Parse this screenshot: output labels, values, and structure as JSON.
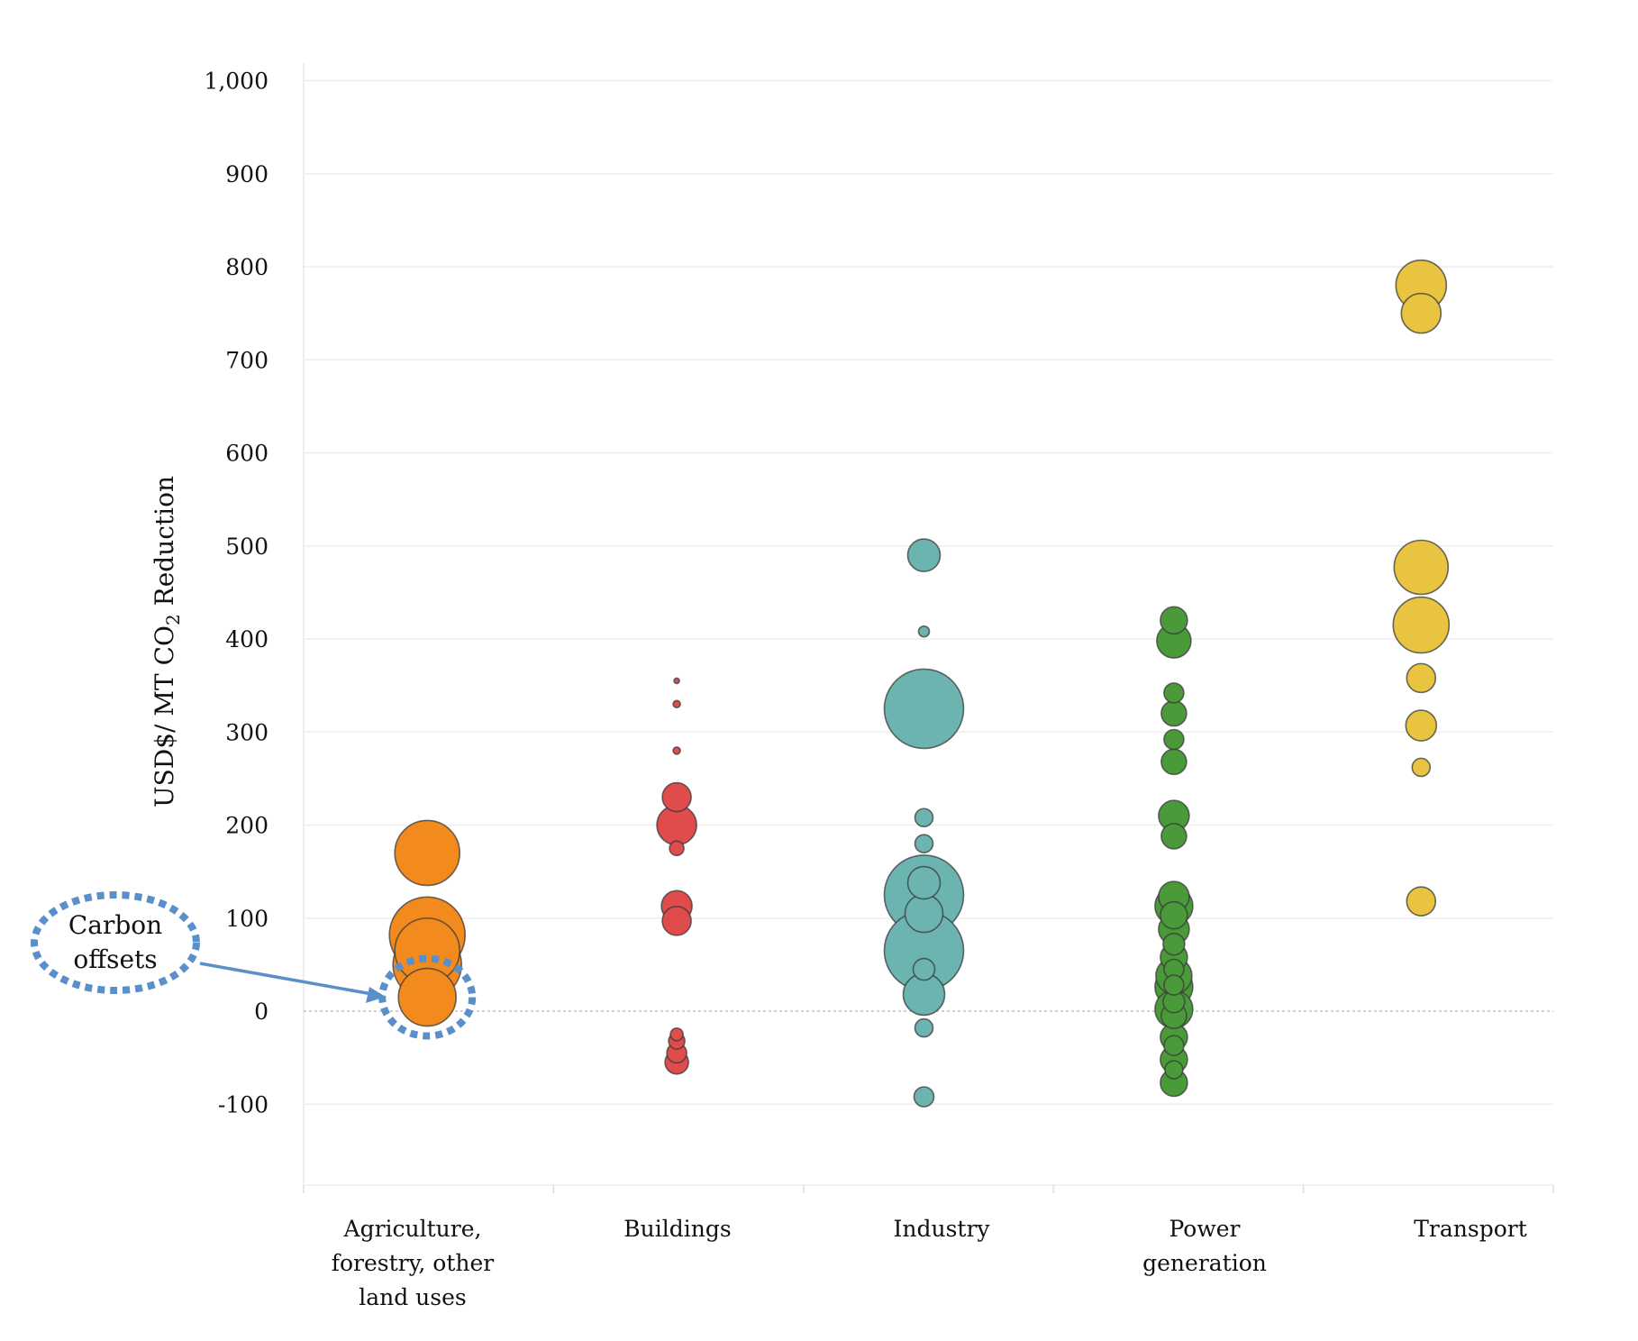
{
  "chart_data": {
    "type": "scatter",
    "subtype": "bubble",
    "ylabel": "USD$/ MT CO₂ Reduction",
    "ylabel_main": "USD$/ MT CO",
    "ylabel_sub": "2",
    "ylabel_tail": " Reduction",
    "ylim": [
      -190,
      1000
    ],
    "ticks": [
      -100,
      0,
      100,
      200,
      300,
      400,
      500,
      600,
      700,
      800,
      900,
      1000
    ],
    "tick_labels": [
      "-100",
      "0",
      "100",
      "200",
      "300",
      "400",
      "500",
      "600",
      "700",
      "800",
      "900",
      "1,000"
    ],
    "grid": true,
    "categories": [
      [
        "Agriculture,",
        "forestry, other",
        "land uses"
      ],
      [
        "Buildings"
      ],
      [
        "Industry"
      ],
      [
        "Power",
        "generation"
      ],
      [
        "Transport"
      ]
    ],
    "series": [
      {
        "color": "#f28a1e",
        "points": [
          {
            "y": 170,
            "r": 36
          },
          {
            "y": 82,
            "r": 42
          },
          {
            "y": 65,
            "r": 36
          },
          {
            "y": 50,
            "r": 38
          },
          {
            "y": 15,
            "r": 32
          }
        ]
      },
      {
        "color": "#e04b4b",
        "points": [
          {
            "y": 355,
            "r": 3
          },
          {
            "y": 330,
            "r": 4
          },
          {
            "y": 280,
            "r": 4
          },
          {
            "y": 230,
            "r": 16
          },
          {
            "y": 200,
            "r": 22
          },
          {
            "y": 175,
            "r": 8
          },
          {
            "y": 113,
            "r": 17
          },
          {
            "y": 97,
            "r": 16
          },
          {
            "y": -25,
            "r": 7
          },
          {
            "y": -32,
            "r": 9
          },
          {
            "y": -45,
            "r": 11
          },
          {
            "y": -55,
            "r": 13
          }
        ]
      },
      {
        "color": "#6cb4b0",
        "points": [
          {
            "y": 490,
            "r": 18
          },
          {
            "y": 408,
            "r": 6
          },
          {
            "y": 325,
            "r": 44
          },
          {
            "y": 208,
            "r": 10
          },
          {
            "y": 180,
            "r": 10
          },
          {
            "y": 125,
            "r": 44
          },
          {
            "y": 138,
            "r": 18
          },
          {
            "y": 105,
            "r": 21
          },
          {
            "y": 65,
            "r": 44
          },
          {
            "y": 45,
            "r": 12
          },
          {
            "y": 18,
            "r": 23
          },
          {
            "y": -18,
            "r": 10
          },
          {
            "y": -92,
            "r": 11
          }
        ]
      },
      {
        "color": "#4a9a3a",
        "points": [
          {
            "y": 420,
            "r": 15
          },
          {
            "y": 398,
            "r": 19
          },
          {
            "y": 342,
            "r": 11
          },
          {
            "y": 320,
            "r": 14
          },
          {
            "y": 292,
            "r": 11
          },
          {
            "y": 268,
            "r": 14
          },
          {
            "y": 210,
            "r": 17
          },
          {
            "y": 188,
            "r": 14
          },
          {
            "y": 123,
            "r": 17
          },
          {
            "y": 113,
            "r": 21
          },
          {
            "y": 103,
            "r": 15
          },
          {
            "y": 88,
            "r": 17
          },
          {
            "y": 72,
            "r": 12
          },
          {
            "y": 58,
            "r": 15
          },
          {
            "y": 45,
            "r": 11
          },
          {
            "y": 38,
            "r": 20
          },
          {
            "y": 26,
            "r": 21
          },
          {
            "y": 28,
            "r": 11
          },
          {
            "y": 10,
            "r": 12
          },
          {
            "y": 2,
            "r": 21
          },
          {
            "y": -5,
            "r": 14
          },
          {
            "y": -28,
            "r": 15
          },
          {
            "y": -37,
            "r": 11
          },
          {
            "y": -52,
            "r": 15
          },
          {
            "y": -63,
            "r": 10
          },
          {
            "y": -77,
            "r": 15
          }
        ]
      },
      {
        "color": "#e8c441",
        "points": [
          {
            "y": 780,
            "r": 28
          },
          {
            "y": 750,
            "r": 22
          },
          {
            "y": 477,
            "r": 30
          },
          {
            "y": 415,
            "r": 31
          },
          {
            "y": 358,
            "r": 16
          },
          {
            "y": 307,
            "r": 17
          },
          {
            "y": 262,
            "r": 10
          },
          {
            "y": 118,
            "r": 16
          }
        ]
      }
    ],
    "annotation": {
      "text": [
        "Carbon",
        "offsets"
      ],
      "color": "#5b8fc9",
      "target_category": 0,
      "target_y": 15
    }
  }
}
